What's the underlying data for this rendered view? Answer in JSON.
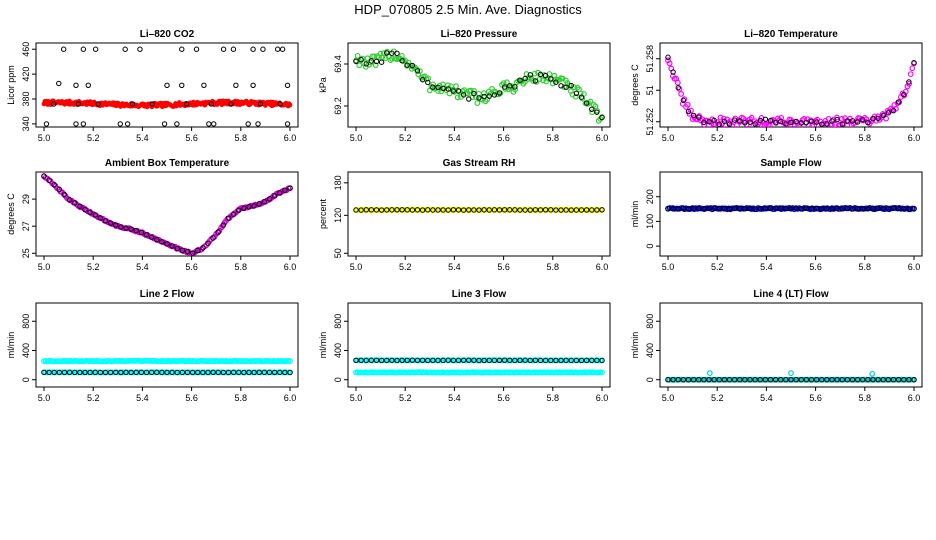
{
  "figure": {
    "title": "HDP_070805  2.5 Min. Ave. Diagnostics"
  },
  "chart_data": [
    {
      "type": "scatter",
      "title": "Li–820 CO2",
      "xlabel": "",
      "ylabel": "Licor ppm",
      "xlim": [
        5.0,
        6.0
      ],
      "ylim": [
        335,
        470
      ],
      "xticks": [
        "5.0",
        "5.2",
        "5.4",
        "5.6",
        "5.8",
        "6.0"
      ],
      "yticks": [
        340,
        380,
        420,
        460
      ],
      "series": [
        {
          "name": "dense",
          "color": "#ff0000",
          "kind": "dense",
          "base": 372,
          "noise": 3,
          "amp": 2
        },
        {
          "name": "ref-high",
          "color": "#000000",
          "kind": "sparse",
          "points": [
            [
              5.08,
              460
            ],
            [
              5.16,
              460
            ],
            [
              5.21,
              460
            ],
            [
              5.33,
              460
            ],
            [
              5.39,
              460
            ],
            [
              5.56,
              460
            ],
            [
              5.62,
              460
            ],
            [
              5.73,
              460
            ],
            [
              5.77,
              460
            ],
            [
              5.85,
              460
            ],
            [
              5.89,
              460
            ],
            [
              5.95,
              460
            ],
            [
              5.97,
              460
            ],
            [
              5.13,
              402
            ],
            [
              5.18,
              402
            ],
            [
              5.5,
              402
            ],
            [
              5.56,
              402
            ],
            [
              5.65,
              402
            ],
            [
              5.78,
              402
            ],
            [
              5.85,
              402
            ],
            [
              5.99,
              402
            ],
            [
              5.06,
              405
            ],
            [
              5.01,
              340
            ],
            [
              5.13,
              340
            ],
            [
              5.16,
              340
            ],
            [
              5.31,
              340
            ],
            [
              5.34,
              340
            ],
            [
              5.49,
              340
            ],
            [
              5.54,
              340
            ],
            [
              5.67,
              340
            ],
            [
              5.69,
              340
            ],
            [
              5.83,
              340
            ],
            [
              5.87,
              340
            ],
            [
              5.99,
              340
            ],
            [
              5.04,
              372
            ],
            [
              5.14,
              372
            ],
            [
              5.22,
              372
            ],
            [
              5.36,
              372
            ],
            [
              5.44,
              372
            ],
            [
              5.58,
              372
            ],
            [
              5.68,
              372
            ],
            [
              5.76,
              372
            ],
            [
              5.88,
              372
            ],
            [
              5.96,
              372
            ]
          ]
        }
      ]
    },
    {
      "type": "scatter",
      "title": "Li–820 Pressure",
      "xlabel": "",
      "ylabel": "kPa",
      "xlim": [
        5.0,
        6.0
      ],
      "ylim": [
        69.1,
        69.5
      ],
      "xticks": [
        "5.0",
        "5.2",
        "5.4",
        "5.6",
        "5.8",
        "6.0"
      ],
      "yticks": [
        69.2,
        69.4
      ],
      "series": [
        {
          "name": "main",
          "color": "#33cc33",
          "kind": "curve",
          "noise": 0.03,
          "second_color": "#000000",
          "curve": [
            [
              5.0,
              69.43
            ],
            [
              5.05,
              69.4
            ],
            [
              5.1,
              69.42
            ],
            [
              5.15,
              69.45
            ],
            [
              5.2,
              69.42
            ],
            [
              5.25,
              69.36
            ],
            [
              5.3,
              69.3
            ],
            [
              5.35,
              69.29
            ],
            [
              5.4,
              69.27
            ],
            [
              5.45,
              69.25
            ],
            [
              5.5,
              69.24
            ],
            [
              5.55,
              69.26
            ],
            [
              5.6,
              69.28
            ],
            [
              5.65,
              69.3
            ],
            [
              5.7,
              69.33
            ],
            [
              5.75,
              69.34
            ],
            [
              5.8,
              69.33
            ],
            [
              5.85,
              69.3
            ],
            [
              5.9,
              69.26
            ],
            [
              5.95,
              69.2
            ],
            [
              6.0,
              69.14
            ]
          ]
        }
      ]
    },
    {
      "type": "scatter",
      "title": "Li–820 Temperature",
      "xlabel": "",
      "ylabel": "degrees C",
      "xlim": [
        5.0,
        6.0
      ],
      "ylim": [
        51.2515,
        51.2595
      ],
      "xticks": [
        "5.0",
        "5.2",
        "5.4",
        "5.6",
        "5.8",
        "6.0"
      ],
      "yticks": [
        51.252,
        51.255,
        51.258
      ],
      "ytick_labels": [
        "51.252",
        "51",
        "51.258"
      ],
      "series": [
        {
          "name": "main",
          "color": "#ff00ff",
          "kind": "curve",
          "noise": 0.0004,
          "second_color": "#000000",
          "curve": [
            [
              5.0,
              51.258
            ],
            [
              5.03,
              51.256
            ],
            [
              5.06,
              51.254
            ],
            [
              5.1,
              51.2525
            ],
            [
              5.15,
              51.252
            ],
            [
              5.2,
              51.252
            ],
            [
              5.5,
              51.252
            ],
            [
              5.8,
              51.252
            ],
            [
              5.85,
              51.2522
            ],
            [
              5.9,
              51.2528
            ],
            [
              5.94,
              51.2538
            ],
            [
              5.97,
              51.2552
            ],
            [
              6.0,
              51.2575
            ]
          ]
        }
      ]
    },
    {
      "type": "scatter",
      "title": "Ambient Box Temperature",
      "xlabel": "",
      "ylabel": "degrees C",
      "xlim": [
        5.0,
        6.0
      ],
      "ylim": [
        24.8,
        31.0
      ],
      "xticks": [
        "5.0",
        "5.2",
        "5.4",
        "5.6",
        "5.8",
        "6.0"
      ],
      "yticks": [
        25,
        27,
        29
      ],
      "series": [
        {
          "name": "main",
          "color": "#cc00cc",
          "kind": "curve",
          "noise": 0.05,
          "second_color": "#000000",
          "curve": [
            [
              5.0,
              30.7
            ],
            [
              5.05,
              29.9
            ],
            [
              5.1,
              29.0
            ],
            [
              5.15,
              28.4
            ],
            [
              5.2,
              27.9
            ],
            [
              5.25,
              27.4
            ],
            [
              5.3,
              27.0
            ],
            [
              5.35,
              26.8
            ],
            [
              5.4,
              26.5
            ],
            [
              5.45,
              26.1
            ],
            [
              5.5,
              25.7
            ],
            [
              5.55,
              25.3
            ],
            [
              5.6,
              25.0
            ],
            [
              5.65,
              25.4
            ],
            [
              5.7,
              26.4
            ],
            [
              5.75,
              27.6
            ],
            [
              5.8,
              28.3
            ],
            [
              5.85,
              28.5
            ],
            [
              5.9,
              28.8
            ],
            [
              5.95,
              29.4
            ],
            [
              6.0,
              29.8
            ]
          ]
        }
      ]
    },
    {
      "type": "scatter",
      "title": "Gas Stream RH",
      "xlabel": "",
      "ylabel": "percent",
      "xlim": [
        5.0,
        6.0
      ],
      "ylim": [
        45,
        200
      ],
      "xticks": [
        "5.0",
        "5.2",
        "5.4",
        "5.6",
        "5.8",
        "6.0"
      ],
      "yticks": [
        50,
        120,
        180
      ],
      "series": [
        {
          "name": "main",
          "color": "#ffff00",
          "kind": "flat",
          "base": 130,
          "noise": 0.5,
          "second_color": "#000000"
        }
      ]
    },
    {
      "type": "scatter",
      "title": "Sample Flow",
      "xlabel": "",
      "ylabel": "ml/min",
      "xlim": [
        5.0,
        6.0
      ],
      "ylim": [
        -40,
        300
      ],
      "xticks": [
        "5.0",
        "5.2",
        "5.4",
        "5.6",
        "5.8",
        "6.0"
      ],
      "yticks": [
        0,
        100,
        200
      ],
      "series": [
        {
          "name": "main",
          "color": "#0000cc",
          "kind": "flat",
          "base": 152,
          "noise": 3,
          "second_color": "#000000"
        }
      ]
    },
    {
      "type": "scatter",
      "title": "Line 2 Flow",
      "xlabel": "",
      "ylabel": "ml/min",
      "xlim": [
        5.0,
        6.0
      ],
      "ylim": [
        -100,
        1050
      ],
      "xticks": [
        "5.0",
        "5.2",
        "5.4",
        "5.6",
        "5.8",
        "6.0"
      ],
      "yticks": [
        0,
        400,
        800
      ],
      "series": [
        {
          "name": "upper",
          "color": "#00ffff",
          "kind": "flat",
          "base": 255,
          "noise": 4
        },
        {
          "name": "lower",
          "color": "#00ffff",
          "kind": "flat",
          "base": 100,
          "noise": 2,
          "second_color": "#000000"
        }
      ]
    },
    {
      "type": "scatter",
      "title": "Line 3 Flow",
      "xlabel": "",
      "ylabel": "ml/min",
      "xlim": [
        5.0,
        6.0
      ],
      "ylim": [
        -100,
        1050
      ],
      "xticks": [
        "5.0",
        "5.2",
        "5.4",
        "5.6",
        "5.8",
        "6.0"
      ],
      "yticks": [
        0,
        400,
        800
      ],
      "series": [
        {
          "name": "upper",
          "color": "#00ffff",
          "kind": "flat",
          "base": 265,
          "noise": 3,
          "second_color": "#000000"
        },
        {
          "name": "lower",
          "color": "#00ffff",
          "kind": "flat",
          "base": 100,
          "noise": 3
        }
      ]
    },
    {
      "type": "scatter",
      "title": "Line 4 (LT) Flow",
      "xlabel": "",
      "ylabel": "ml/min",
      "xlim": [
        5.0,
        6.0
      ],
      "ylim": [
        -100,
        1050
      ],
      "xticks": [
        "5.0",
        "5.2",
        "5.4",
        "5.6",
        "5.8",
        "6.0"
      ],
      "yticks": [
        0,
        400,
        800
      ],
      "series": [
        {
          "name": "main",
          "color": "#00cccc",
          "kind": "flat",
          "base": 0,
          "noise": 1,
          "second_color": "#000000",
          "outliers": [
            [
              5.17,
              90
            ],
            [
              5.5,
              90
            ],
            [
              5.83,
              80
            ]
          ]
        }
      ]
    }
  ]
}
